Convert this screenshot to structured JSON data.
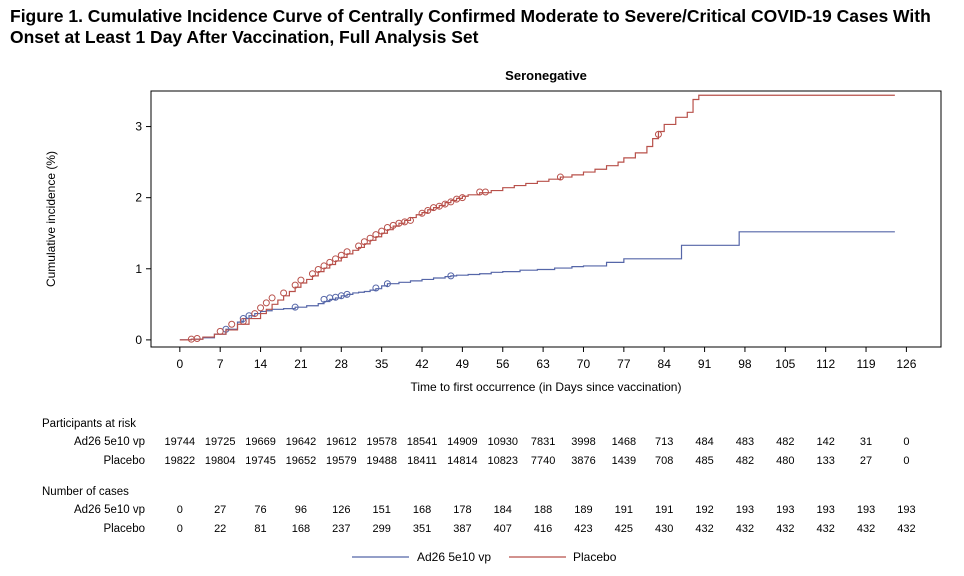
{
  "figure_title": "Figure 1. Cumulative Incidence Curve of Centrally Confirmed Moderate to Severe/Critical COVID-19 Cases With Onset at Least 1 Day After Vaccination, Full Analysis Set",
  "colors": {
    "vaccine": "#5566a8",
    "placebo": "#b8504a",
    "axis": "#000000"
  },
  "chart_data": {
    "type": "line",
    "title": "Seronegative",
    "xlabel": "Time to first occurrence (in Days since vaccination)",
    "ylabel": "Cumulative incidence (%)",
    "xlim": [
      -5,
      132
    ],
    "ylim": [
      -0.1,
      3.5
    ],
    "x_ticks": [
      0,
      7,
      14,
      21,
      28,
      35,
      42,
      49,
      56,
      63,
      70,
      77,
      84,
      91,
      98,
      105,
      112,
      119,
      126
    ],
    "y_ticks": [
      0,
      1,
      2,
      3
    ],
    "grid": false,
    "legend_position": "bottom",
    "series": [
      {
        "name": "Ad26 5e10 vp",
        "color_key": "vaccine",
        "step": [
          [
            0,
            0
          ],
          [
            2,
            0.01
          ],
          [
            4,
            0.03
          ],
          [
            6,
            0.08
          ],
          [
            8,
            0.15
          ],
          [
            10,
            0.25
          ],
          [
            11,
            0.3
          ],
          [
            12,
            0.34
          ],
          [
            13,
            0.37
          ],
          [
            14,
            0.4
          ],
          [
            15,
            0.41
          ],
          [
            16,
            0.43
          ],
          [
            18,
            0.44
          ],
          [
            20,
            0.46
          ],
          [
            22,
            0.48
          ],
          [
            24,
            0.51
          ],
          [
            25,
            0.54
          ],
          [
            26,
            0.57
          ],
          [
            27,
            0.59
          ],
          [
            28,
            0.62
          ],
          [
            29,
            0.64
          ],
          [
            30,
            0.66
          ],
          [
            31,
            0.67
          ],
          [
            32,
            0.68
          ],
          [
            33,
            0.7
          ],
          [
            34,
            0.72
          ],
          [
            35,
            0.76
          ],
          [
            36,
            0.79
          ],
          [
            38,
            0.81
          ],
          [
            40,
            0.83
          ],
          [
            42,
            0.85
          ],
          [
            44,
            0.87
          ],
          [
            46,
            0.89
          ],
          [
            47,
            0.9
          ],
          [
            48,
            0.91
          ],
          [
            50,
            0.92
          ],
          [
            52,
            0.93
          ],
          [
            54,
            0.95
          ],
          [
            56,
            0.96
          ],
          [
            59,
            0.98
          ],
          [
            62,
            0.99
          ],
          [
            65,
            1.01
          ],
          [
            68,
            1.03
          ],
          [
            70,
            1.04
          ],
          [
            74,
            1.09
          ],
          [
            77,
            1.14
          ],
          [
            80,
            1.14
          ],
          [
            83,
            1.14
          ],
          [
            87,
            1.33
          ],
          [
            91,
            1.33
          ],
          [
            94,
            1.33
          ],
          [
            97,
            1.52
          ],
          [
            105,
            1.52
          ],
          [
            112,
            1.52
          ],
          [
            119,
            1.52
          ],
          [
            124,
            1.52
          ]
        ],
        "censored": [
          [
            8,
            0.15
          ],
          [
            11,
            0.3
          ],
          [
            12,
            0.34
          ],
          [
            20,
            0.46
          ],
          [
            25,
            0.57
          ],
          [
            26,
            0.59
          ],
          [
            27,
            0.6
          ],
          [
            28,
            0.62
          ],
          [
            29,
            0.64
          ],
          [
            34,
            0.73
          ],
          [
            36,
            0.79
          ],
          [
            47,
            0.9
          ]
        ]
      },
      {
        "name": "Placebo",
        "color_key": "placebo",
        "step": [
          [
            0,
            0
          ],
          [
            2,
            0.01
          ],
          [
            4,
            0.04
          ],
          [
            6,
            0.08
          ],
          [
            8,
            0.14
          ],
          [
            10,
            0.22
          ],
          [
            12,
            0.3
          ],
          [
            14,
            0.37
          ],
          [
            15,
            0.43
          ],
          [
            16,
            0.5
          ],
          [
            17,
            0.56
          ],
          [
            18,
            0.62
          ],
          [
            19,
            0.68
          ],
          [
            20,
            0.74
          ],
          [
            21,
            0.8
          ],
          [
            22,
            0.85
          ],
          [
            23,
            0.9
          ],
          [
            24,
            0.96
          ],
          [
            25,
            1.01
          ],
          [
            26,
            1.06
          ],
          [
            27,
            1.11
          ],
          [
            28,
            1.16
          ],
          [
            29,
            1.21
          ],
          [
            30,
            1.26
          ],
          [
            31,
            1.3
          ],
          [
            32,
            1.35
          ],
          [
            33,
            1.4
          ],
          [
            34,
            1.45
          ],
          [
            35,
            1.5
          ],
          [
            36,
            1.55
          ],
          [
            37,
            1.6
          ],
          [
            38,
            1.64
          ],
          [
            39,
            1.68
          ],
          [
            40,
            1.72
          ],
          [
            41,
            1.76
          ],
          [
            42,
            1.79
          ],
          [
            43,
            1.83
          ],
          [
            44,
            1.86
          ],
          [
            45,
            1.89
          ],
          [
            46,
            1.93
          ],
          [
            47,
            1.96
          ],
          [
            48,
            1.99
          ],
          [
            49,
            2.02
          ],
          [
            50,
            2.04
          ],
          [
            52,
            2.07
          ],
          [
            54,
            2.1
          ],
          [
            56,
            2.14
          ],
          [
            58,
            2.17
          ],
          [
            60,
            2.2
          ],
          [
            62,
            2.23
          ],
          [
            64,
            2.26
          ],
          [
            66,
            2.29
          ],
          [
            68,
            2.32
          ],
          [
            70,
            2.36
          ],
          [
            72,
            2.4
          ],
          [
            74,
            2.45
          ],
          [
            76,
            2.5
          ],
          [
            77,
            2.56
          ],
          [
            79,
            2.63
          ],
          [
            81,
            2.72
          ],
          [
            82,
            2.83
          ],
          [
            83,
            2.93
          ],
          [
            84,
            3.03
          ],
          [
            86,
            3.13
          ],
          [
            88,
            3.2
          ],
          [
            89,
            3.38
          ],
          [
            90,
            3.44
          ],
          [
            100,
            3.44
          ],
          [
            110,
            3.44
          ],
          [
            118,
            3.44
          ],
          [
            124,
            3.44
          ]
        ],
        "censored": [
          [
            2,
            0.01
          ],
          [
            3,
            0.02
          ],
          [
            7,
            0.12
          ],
          [
            9,
            0.22
          ],
          [
            11,
            0.26
          ],
          [
            13,
            0.37
          ],
          [
            14,
            0.45
          ],
          [
            15,
            0.52
          ],
          [
            16,
            0.59
          ],
          [
            18,
            0.66
          ],
          [
            20,
            0.77
          ],
          [
            21,
            0.84
          ],
          [
            23,
            0.93
          ],
          [
            24,
            0.99
          ],
          [
            25,
            1.04
          ],
          [
            26,
            1.09
          ],
          [
            27,
            1.14
          ],
          [
            28,
            1.19
          ],
          [
            29,
            1.24
          ],
          [
            31,
            1.32
          ],
          [
            32,
            1.38
          ],
          [
            33,
            1.43
          ],
          [
            34,
            1.48
          ],
          [
            35,
            1.53
          ],
          [
            36,
            1.58
          ],
          [
            37,
            1.61
          ],
          [
            38,
            1.64
          ],
          [
            39,
            1.66
          ],
          [
            40,
            1.68
          ],
          [
            42,
            1.78
          ],
          [
            43,
            1.82
          ],
          [
            44,
            1.86
          ],
          [
            45,
            1.88
          ],
          [
            46,
            1.91
          ],
          [
            47,
            1.94
          ],
          [
            48,
            1.98
          ],
          [
            49,
            2.0
          ],
          [
            52,
            2.08
          ],
          [
            53,
            2.08
          ],
          [
            66,
            2.29
          ],
          [
            83,
            2.89
          ]
        ]
      }
    ],
    "risk_table": {
      "title": "Participants at risk",
      "rows": [
        {
          "label": "Ad26 5e10 vp",
          "values": [
            "19744",
            "19725",
            "19669",
            "19642",
            "19612",
            "19578",
            "18541",
            "14909",
            "10930",
            "7831",
            "3998",
            "1468",
            "713",
            "484",
            "483",
            "482",
            "142",
            "31",
            "0"
          ]
        },
        {
          "label": "Placebo",
          "values": [
            "19822",
            "19804",
            "19745",
            "19652",
            "19579",
            "19488",
            "18411",
            "14814",
            "10823",
            "7740",
            "3876",
            "1439",
            "708",
            "485",
            "482",
            "480",
            "133",
            "27",
            "0"
          ]
        }
      ]
    },
    "cases_table": {
      "title": "Number of cases",
      "rows": [
        {
          "label": "Ad26 5e10 vp",
          "values": [
            "0",
            "27",
            "76",
            "96",
            "126",
            "151",
            "168",
            "178",
            "184",
            "188",
            "189",
            "191",
            "191",
            "192",
            "193",
            "193",
            "193",
            "193",
            "193"
          ]
        },
        {
          "label": "Placebo",
          "values": [
            "0",
            "22",
            "81",
            "168",
            "237",
            "299",
            "351",
            "387",
            "407",
            "416",
            "423",
            "425",
            "430",
            "432",
            "432",
            "432",
            "432",
            "432",
            "432"
          ]
        }
      ]
    }
  }
}
